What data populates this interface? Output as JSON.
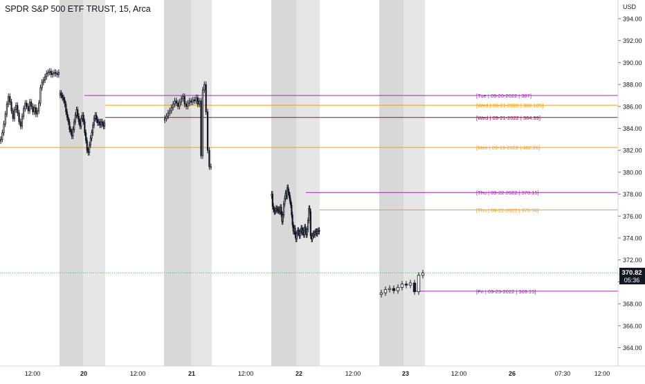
{
  "header": {
    "title": "SPDR S&P 500 ETF TRUST, 15, Arca"
  },
  "price_axis": {
    "currency": "USD",
    "ticks": [
      "394.00",
      "392.00",
      "390.00",
      "388.00",
      "386.00",
      "384.00",
      "382.00",
      "380.00",
      "378.00",
      "376.00",
      "374.00",
      "372.00",
      "370.00",
      "368.00",
      "366.00",
      "364.00"
    ],
    "last_price": "370.82",
    "countdown": "05:36"
  },
  "time_axis": {
    "labels": [
      "12:00",
      "20",
      "12:00",
      "21",
      "12:00",
      "22",
      "12:00",
      "23",
      "12:00",
      "26",
      "07:30",
      "12:00"
    ]
  },
  "colors": {
    "purple": "#9c27b0",
    "orange": "#ff9800",
    "dark_red": "#880e4f",
    "candle": "#131722",
    "session_dark": "#d8d8d8",
    "session_light": "#e6e6e6",
    "last_price_line": "#4caf50"
  },
  "chart_data": {
    "type": "candlestick",
    "title": "SPDR S&P 500 ETF TRUST, 15, Arca",
    "ylabel": "USD",
    "ylim": [
      362.8,
      395.6
    ],
    "level_lines": [
      {
        "label": "[Tue | 09-20-2022 | 387]",
        "price": 387.0,
        "color": "purple"
      },
      {
        "label": "[Wed | 09-21-2022 | 386.105]",
        "price": 386.105,
        "color": "orange"
      },
      {
        "label": "[Wed | 09-21-2022 | 384.99]",
        "price": 384.99,
        "color": "dark_red"
      },
      {
        "label": "[Mon | 09-19-2022 | 382.26]",
        "price": 382.26,
        "color": "orange"
      },
      {
        "label": "[Thu | 09-22-2022 | 378.15]",
        "price": 378.15,
        "color": "purple"
      },
      {
        "label": "[Thu | 09-22-2022 | 376.56]",
        "price": 376.56,
        "color": "orange"
      },
      {
        "label": "[Fri | 09-23-2022 | 369.15]",
        "price": 369.15,
        "color": "purple"
      }
    ],
    "last_price": 370.82,
    "series": [
      {
        "session": "09-19",
        "closes": [
          383.0,
          383.6,
          384.4,
          385.3,
          386.2,
          386.9,
          386.4,
          385.6,
          384.9,
          385.7,
          386.1,
          385.4,
          384.6,
          384.2,
          385.1,
          385.8,
          386.3,
          386.0,
          385.6,
          386.4,
          386.0,
          385.5,
          385.9,
          385.3,
          385.6,
          386.3,
          387.7,
          388.2,
          388.4,
          388.7,
          389.0,
          389.1,
          389.2,
          388.9,
          389.0,
          389.1,
          389.0,
          388.9,
          389.1
        ]
      },
      {
        "session": "09-20",
        "closes": [
          387.2,
          387.0,
          386.8,
          386.6,
          386.2,
          385.5,
          385.0,
          384.6,
          383.9,
          383.7,
          383.3,
          383.9,
          384.6,
          385.2,
          385.7,
          385.1,
          384.6,
          384.2,
          384.9,
          385.2,
          384.6,
          383.6,
          382.9,
          382.0,
          381.8,
          382.5,
          383.1,
          383.6,
          384.3,
          384.9,
          385.2,
          384.8,
          384.5,
          384.6,
          384.3,
          384.6,
          384.4,
          384.2,
          384.5
        ]
      },
      {
        "session": "09-21",
        "closes": [
          384.9,
          385.1,
          385.4,
          385.6,
          385.9,
          386.2,
          386.5,
          386.3,
          386.0,
          386.4,
          386.7,
          386.9,
          386.2,
          386.0,
          386.3,
          386.5,
          386.4,
          386.6,
          386.5,
          386.8,
          386.2,
          386.5,
          381.5,
          387.5,
          388.0,
          385.5,
          382.0,
          380.5,
          380.5
        ]
      },
      {
        "session": "09-22",
        "closes": [
          378.0,
          376.9,
          376.6,
          376.4,
          376.5,
          376.7,
          376.6,
          376.5,
          376.6,
          376.4,
          376.8,
          376.2,
          375.5,
          376.1,
          377.1,
          377.6,
          378.1,
          377.8,
          378.6,
          378.2,
          377.9,
          377.4,
          377.0,
          376.1,
          375.2,
          374.6,
          374.9,
          374.3,
          373.9,
          374.4,
          374.7,
          374.5,
          374.2,
          374.6,
          374.9,
          374.5,
          374.7,
          374.3,
          375.0,
          374.6,
          374.3,
          374.8,
          375.6,
          376.7,
          376.4,
          374.2,
          373.9,
          374.2,
          374.4,
          374.3,
          374.5,
          374.6,
          374.4,
          374.6,
          374.7,
          374.6
        ]
      },
      {
        "session": "09-23",
        "closes": [
          369.0,
          369.3,
          369.4,
          369.2,
          369.5,
          369.8,
          369.7,
          369.9,
          369.1,
          370.6,
          370.82
        ]
      }
    ]
  }
}
